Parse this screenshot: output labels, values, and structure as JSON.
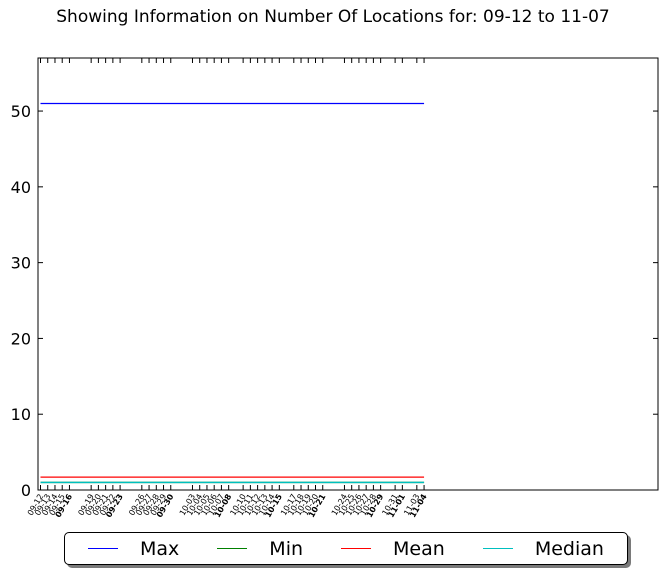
{
  "title": "Showing Information on Number Of Locations for: 09-12 to 11-07",
  "chart_data": {
    "type": "line",
    "title": "Showing Information on Number Of Locations for: 09-12 to 11-07",
    "xlabel": "",
    "ylabel": "",
    "ylim": [
      0,
      57
    ],
    "yticks": [
      0,
      10,
      20,
      30,
      40,
      50
    ],
    "x": [
      "09-12",
      "09-13",
      "09-14",
      "09-15",
      "09-16",
      "09-19",
      "09-20",
      "09-21",
      "09-22",
      "09-23",
      "09-26",
      "09-27",
      "09-28",
      "09-29",
      "09-30",
      "10-03",
      "10-04",
      "10-05",
      "10-06",
      "10-07",
      "10-08",
      "10-10",
      "10-11",
      "10-12",
      "10-13",
      "10-14",
      "10-15",
      "10-17",
      "10-18",
      "10-19",
      "10-20",
      "10-21",
      "10-24",
      "10-25",
      "10-26",
      "10-27",
      "10-28",
      "10-29",
      "10-31",
      "11-01",
      "11-03",
      "11-04"
    ],
    "bold_ticks": [
      "09-16",
      "09-23",
      "09-30",
      "10-08",
      "10-15",
      "10-21",
      "10-29",
      "11-01",
      "11-04"
    ],
    "series": [
      {
        "name": "Max",
        "color": "#0000ff",
        "values": [
          51,
          51,
          51,
          51,
          51,
          51,
          51,
          51,
          51,
          51,
          51,
          51,
          51,
          51,
          51,
          51,
          51,
          51,
          51,
          51,
          51,
          51,
          51,
          51,
          51,
          51,
          51,
          51,
          51,
          51,
          51,
          51,
          51,
          51,
          51,
          51,
          51,
          51,
          51,
          51,
          51,
          51
        ]
      },
      {
        "name": "Min",
        "color": "#008000",
        "values": [
          1,
          1,
          1,
          1,
          1,
          1,
          1,
          1,
          1,
          1,
          1,
          1,
          1,
          1,
          1,
          1,
          1,
          1,
          1,
          1,
          1,
          1,
          1,
          1,
          1,
          1,
          1,
          1,
          1,
          1,
          1,
          1,
          1,
          1,
          1,
          1,
          1,
          1,
          1,
          1,
          1,
          1
        ]
      },
      {
        "name": "Mean",
        "color": "#ff0000",
        "values": [
          1.7,
          1.7,
          1.7,
          1.7,
          1.7,
          1.7,
          1.7,
          1.7,
          1.7,
          1.7,
          1.7,
          1.7,
          1.7,
          1.7,
          1.7,
          1.7,
          1.7,
          1.7,
          1.7,
          1.7,
          1.7,
          1.7,
          1.7,
          1.7,
          1.7,
          1.7,
          1.7,
          1.7,
          1.7,
          1.7,
          1.7,
          1.7,
          1.7,
          1.7,
          1.7,
          1.7,
          1.7,
          1.7,
          1.7,
          1.7,
          1.7,
          1.7
        ]
      },
      {
        "name": "Median",
        "color": "#00bfbf",
        "values": [
          1,
          1,
          1,
          1,
          1,
          1,
          1,
          1,
          1,
          1,
          1,
          1,
          1,
          1,
          1,
          1,
          1,
          1,
          1,
          1,
          1,
          1,
          1,
          1,
          1,
          1,
          1,
          1,
          1,
          1,
          1,
          1,
          1,
          1,
          1,
          1,
          1,
          1,
          1,
          1,
          1,
          1
        ]
      }
    ],
    "legend_position": "bottom",
    "grid": false
  }
}
